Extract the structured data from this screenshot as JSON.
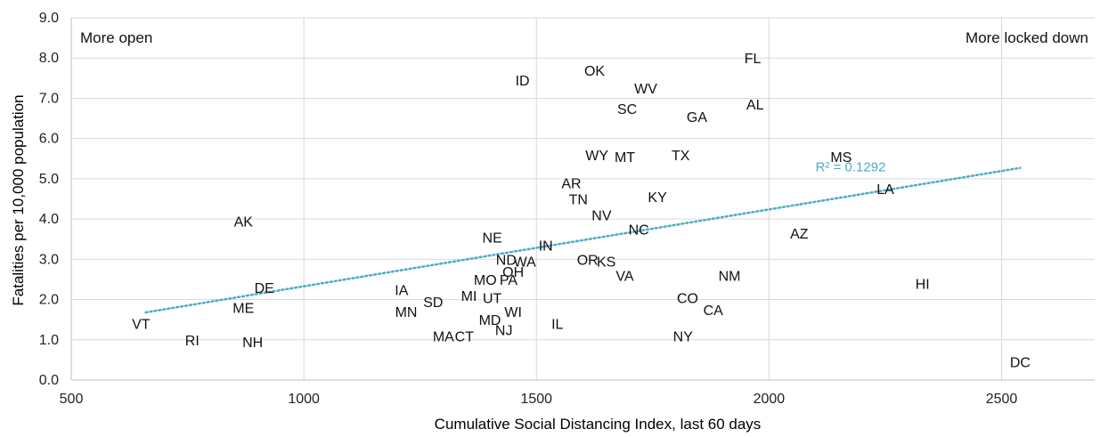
{
  "chart_data": {
    "type": "scatter",
    "xlabel": "Cumulative Social Distancing Index, last 60 days",
    "ylabel": "Fatalities per 10,000 population",
    "xlim": [
      500,
      2700
    ],
    "ylim": [
      0,
      9
    ],
    "x_ticks": [
      500,
      1000,
      1500,
      2000,
      2500
    ],
    "y_ticks": [
      0,
      1,
      2,
      3,
      4,
      5,
      6,
      7,
      8,
      9
    ],
    "y_tick_labels": [
      "0.0",
      "1.0",
      "2.0",
      "3.0",
      "4.0",
      "5.0",
      "6.0",
      "7.0",
      "8.0",
      "9.0"
    ],
    "x_tick_labels": [
      "500",
      "1000",
      "1500",
      "2000",
      "2500"
    ],
    "grid": true,
    "annotations": {
      "left": "More open",
      "right": "More locked down"
    },
    "trendline": {
      "type": "linear",
      "x": [
        660,
        2540
      ],
      "y": [
        1.68,
        5.27
      ],
      "label": "R² = 0.1292",
      "color": "#4bacc6"
    },
    "points": [
      {
        "label": "FL",
        "x": 1965,
        "y": 8.0
      },
      {
        "label": "OK",
        "x": 1625,
        "y": 7.7
      },
      {
        "label": "ID",
        "x": 1470,
        "y": 7.45
      },
      {
        "label": "WV",
        "x": 1735,
        "y": 7.25
      },
      {
        "label": "AL",
        "x": 1970,
        "y": 6.85
      },
      {
        "label": "SC",
        "x": 1695,
        "y": 6.75
      },
      {
        "label": "GA",
        "x": 1845,
        "y": 6.55
      },
      {
        "label": "WY",
        "x": 1630,
        "y": 5.6
      },
      {
        "label": "MT",
        "x": 1690,
        "y": 5.55
      },
      {
        "label": "TX",
        "x": 1810,
        "y": 5.6
      },
      {
        "label": "MS",
        "x": 2155,
        "y": 5.55
      },
      {
        "label": "AR",
        "x": 1575,
        "y": 4.9
      },
      {
        "label": "LA",
        "x": 2250,
        "y": 4.75
      },
      {
        "label": "TN",
        "x": 1590,
        "y": 4.5
      },
      {
        "label": "KY",
        "x": 1760,
        "y": 4.55
      },
      {
        "label": "NV",
        "x": 1640,
        "y": 4.1
      },
      {
        "label": "AK",
        "x": 870,
        "y": 3.95
      },
      {
        "label": "NC",
        "x": 1720,
        "y": 3.75
      },
      {
        "label": "AZ",
        "x": 2065,
        "y": 3.65
      },
      {
        "label": "NE",
        "x": 1405,
        "y": 3.55
      },
      {
        "label": "IN",
        "x": 1520,
        "y": 3.35
      },
      {
        "label": "ND",
        "x": 1435,
        "y": 3.0
      },
      {
        "label": "WA",
        "x": 1475,
        "y": 2.95
      },
      {
        "label": "OR",
        "x": 1610,
        "y": 3.0
      },
      {
        "label": "KS",
        "x": 1650,
        "y": 2.95
      },
      {
        "label": "OH",
        "x": 1450,
        "y": 2.7
      },
      {
        "label": "MO",
        "x": 1390,
        "y": 2.5
      },
      {
        "label": "PA",
        "x": 1440,
        "y": 2.5
      },
      {
        "label": "VA",
        "x": 1690,
        "y": 2.6
      },
      {
        "label": "NM",
        "x": 1915,
        "y": 2.6
      },
      {
        "label": "HI",
        "x": 2330,
        "y": 2.4
      },
      {
        "label": "DE",
        "x": 915,
        "y": 2.3
      },
      {
        "label": "IA",
        "x": 1210,
        "y": 2.25
      },
      {
        "label": "MI",
        "x": 1355,
        "y": 2.1
      },
      {
        "label": "UT",
        "x": 1405,
        "y": 2.05
      },
      {
        "label": "CO",
        "x": 1825,
        "y": 2.05
      },
      {
        "label": "SD",
        "x": 1278,
        "y": 1.95
      },
      {
        "label": "ME",
        "x": 870,
        "y": 1.8
      },
      {
        "label": "CA",
        "x": 1880,
        "y": 1.75
      },
      {
        "label": "MN",
        "x": 1220,
        "y": 1.7
      },
      {
        "label": "WI",
        "x": 1450,
        "y": 1.7
      },
      {
        "label": "MD",
        "x": 1400,
        "y": 1.5
      },
      {
        "label": "VT",
        "x": 650,
        "y": 1.4
      },
      {
        "label": "IL",
        "x": 1545,
        "y": 1.4
      },
      {
        "label": "NJ",
        "x": 1430,
        "y": 1.25
      },
      {
        "label": "MA",
        "x": 1300,
        "y": 1.1
      },
      {
        "label": "CT",
        "x": 1345,
        "y": 1.1
      },
      {
        "label": "NY",
        "x": 1815,
        "y": 1.1
      },
      {
        "label": "RI",
        "x": 760,
        "y": 1.0
      },
      {
        "label": "NH",
        "x": 890,
        "y": 0.95
      },
      {
        "label": "DC",
        "x": 2540,
        "y": 0.45
      }
    ]
  }
}
